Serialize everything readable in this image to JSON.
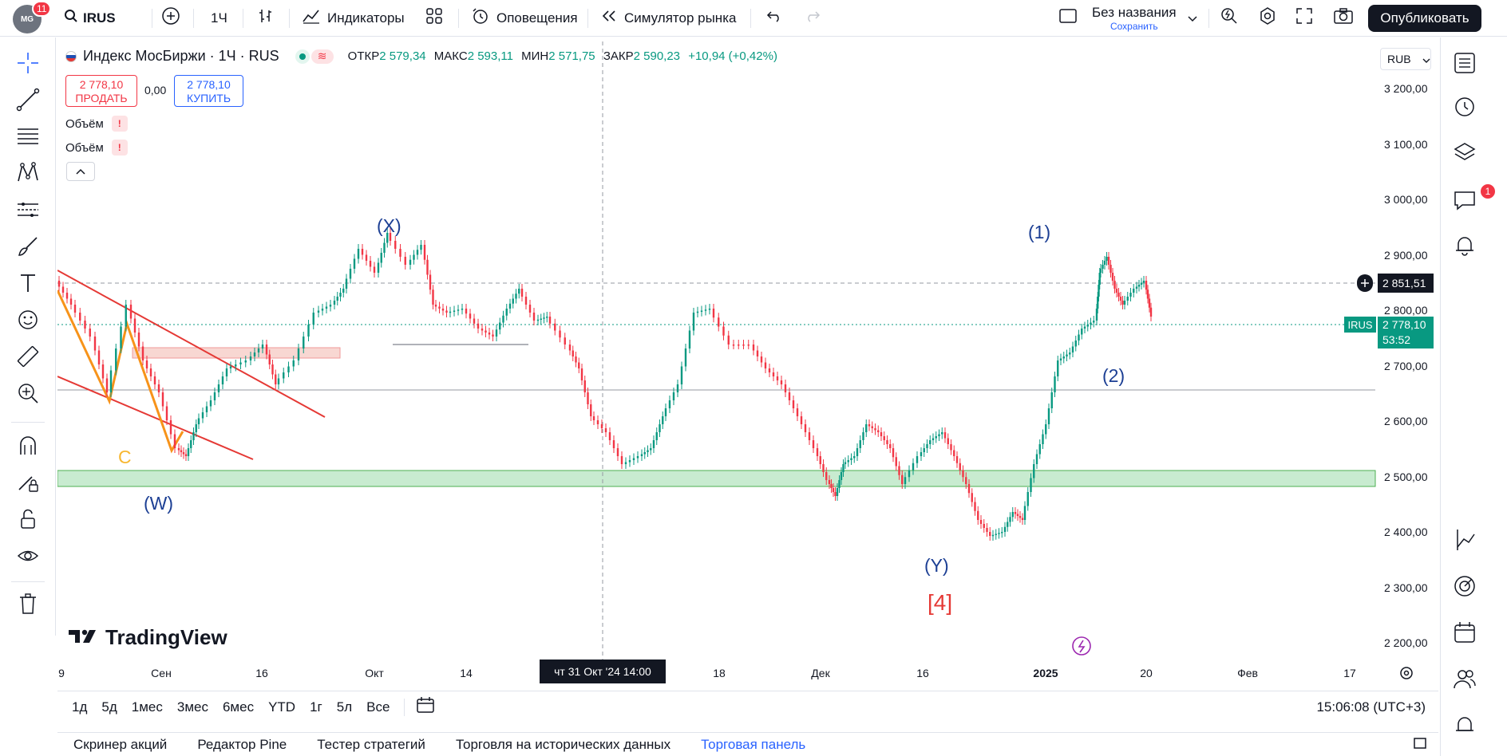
{
  "topbar": {
    "avatar_text": "MG",
    "avatar_badge": "11",
    "symbol": "IRUS",
    "interval": "1Ч",
    "indicators": "Индикаторы",
    "alerts": "Оповещения",
    "replay": "Симулятор рынка",
    "layout_name": "Без названия",
    "layout_save": "Сохранить",
    "publish": "Опубликовать"
  },
  "legend": {
    "title": "Индекс МосБиржи · 1Ч · RUS",
    "open_label": "ОТКР",
    "open": "2 579,34",
    "high_label": "МАКС",
    "high": "2 593,11",
    "low_label": "МИН",
    "low": "2 571,75",
    "close_label": "ЗАКР",
    "close": "2 590,23",
    "change": "+10,94 (+0,42%)",
    "sell_price": "2 778,10",
    "sell_label": "ПРОДАТЬ",
    "spread": "0,00",
    "buy_price": "2 778,10",
    "buy_label": "КУПИТЬ",
    "volume1": "Объём",
    "volume2": "Объём",
    "warn": "!"
  },
  "currency": "RUB",
  "price_axis": [
    "3 200,00",
    "3 100,00",
    "3 000,00",
    "2 900,00",
    "2 800,00",
    "2 700,00",
    "2 600,00",
    "2 500,00",
    "2 400,00",
    "2 300,00",
    "2 200,00"
  ],
  "time_axis": [
    "9",
    "Сен",
    "16",
    "Окт",
    "14",
    "18",
    "Дек",
    "16",
    "2025",
    "20",
    "Фев",
    "17"
  ],
  "crosshair_time": "чт 31 Окт '24   14:00",
  "crosshair_price": "2 851,51",
  "last_price": {
    "symbol": "IRUS",
    "price": "2 778,10",
    "countdown": "53:52"
  },
  "wave_labels": {
    "x": "(X)",
    "w": "(W)",
    "c": "C",
    "y": "(Y)",
    "one": "(1)",
    "two": "(2)",
    "four": "[4]"
  },
  "watermark": "TradingView",
  "timeframes": [
    "1д",
    "5д",
    "1мес",
    "3мес",
    "6мес",
    "YTD",
    "1г",
    "5л",
    "Все"
  ],
  "clock": "15:06:08 (UTC+3)",
  "bottom_tabs": [
    "Скринер акций",
    "Редактор Pine",
    "Тестер стратегий",
    "Торговля на исторических данных",
    "Торговая панель"
  ],
  "right_badge": "1",
  "colors": {
    "up": "#089981",
    "down": "#f23645",
    "wave": "#1c3f94",
    "orange": "#f7931a",
    "accent": "#2962ff"
  }
}
